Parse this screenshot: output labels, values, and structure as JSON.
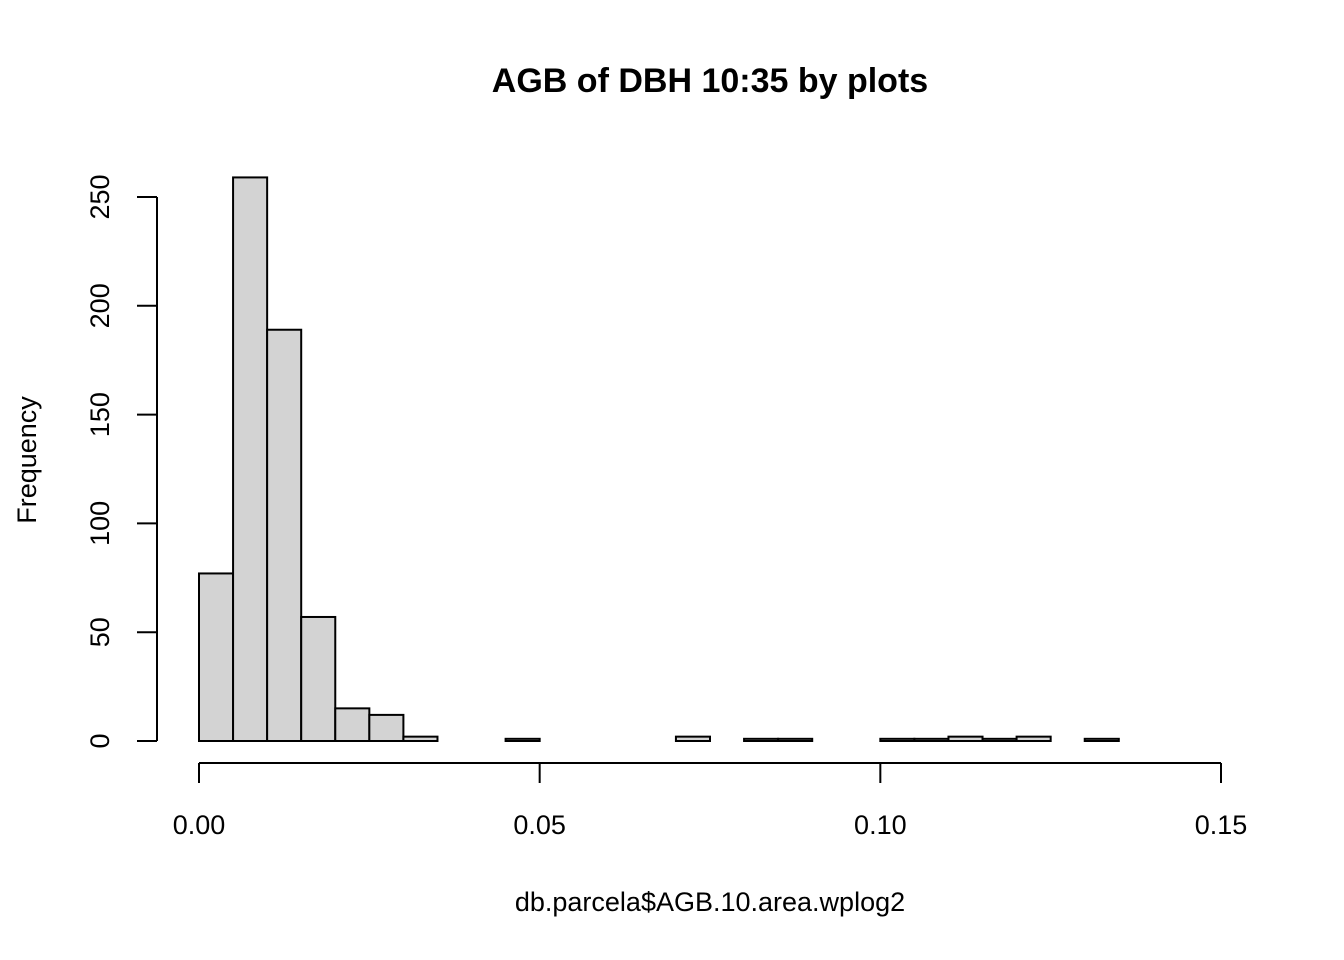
{
  "chart_data": {
    "type": "bar",
    "title": "AGB of DBH 10:35 by plots",
    "xlabel": "db.parcela$AGB.10.area.wplog2",
    "ylabel": "Frequency",
    "bin_width": 0.005,
    "bin_start": 0.0,
    "xlim": [
      0.0,
      0.15
    ],
    "ylim": [
      0,
      250
    ],
    "x_ticks": [
      0.0,
      0.05,
      0.1,
      0.15
    ],
    "x_tick_labels": [
      "0.00",
      "0.05",
      "0.10",
      "0.15"
    ],
    "y_ticks": [
      0,
      50,
      100,
      150,
      200,
      250
    ],
    "y_tick_labels": [
      "0",
      "50",
      "100",
      "150",
      "200",
      "250"
    ],
    "values": [
      77,
      259,
      189,
      57,
      15,
      12,
      2,
      0,
      0,
      1,
      0,
      0,
      0,
      0,
      2,
      0,
      1,
      1,
      0,
      0,
      1,
      1,
      2,
      1,
      2,
      0,
      1,
      0,
      0,
      0
    ],
    "bar_fill": "#d3d3d3",
    "bar_stroke": "#000000",
    "grid": false
  }
}
